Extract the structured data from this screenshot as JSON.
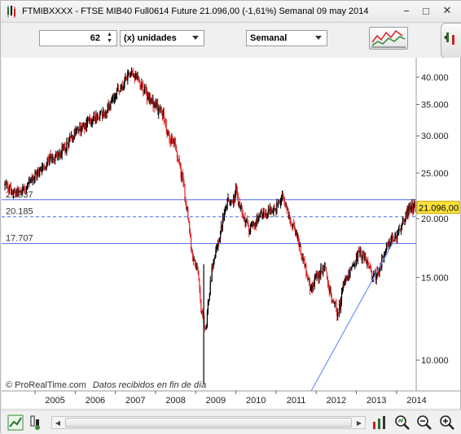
{
  "window": {
    "title": "FTMIBXXXX - FTSE MIB40 Full0614 Future    21.096,00 (-1,61%)    Semanal  09 may 2014",
    "minimize_label": "−",
    "maximize_label": "□",
    "close_label": "✕"
  },
  "controls": {
    "units_value": "62",
    "units_label": "(x) unidades",
    "timeframe_label": "Semanal"
  },
  "chart": {
    "watermark": "© ProRealTime.com",
    "watermark_note": "Datos recibidos en fin de día",
    "last_price_label": "21.096,00",
    "colors": {
      "up": "#000000",
      "down": "#dd2a2a",
      "hline": "#4a6cf0",
      "trend": "#6f8fff",
      "price_tag": "#ffe23a"
    }
  },
  "chart_data": {
    "type": "candlestick",
    "title": "FTMIBXXXX - FTSE MIB40 Full0614 Future",
    "y_scale": "log",
    "ylim": [
      8600,
      44000
    ],
    "y_ticks": [
      {
        "value": 40000,
        "label": "40.000"
      },
      {
        "value": 35000,
        "label": "35.000"
      },
      {
        "value": 30000,
        "label": "30.000"
      },
      {
        "value": 25000,
        "label": "25.000"
      },
      {
        "value": 20000,
        "label": "20.000"
      },
      {
        "value": 15000,
        "label": "15.000"
      },
      {
        "value": 10000,
        "label": "10.000"
      }
    ],
    "x_ticks": [
      "2005",
      "2006",
      "2007",
      "2008",
      "2009",
      "2010",
      "2011",
      "2012",
      "2013",
      "2014"
    ],
    "xlim": [
      2004.25,
      2014.47
    ],
    "horizontal_lines": [
      {
        "value": 21937,
        "label": "21.937",
        "style": "solid"
      },
      {
        "value": 20185,
        "label": "20.185",
        "style": "dashed"
      },
      {
        "value": 17707,
        "label": "17.707",
        "style": "solid"
      }
    ],
    "last_price": 21096,
    "trendline": [
      [
        2011.3,
        7000
      ],
      [
        2013.9,
        17700
      ]
    ],
    "price_path": [
      [
        2004.25,
        23500
      ],
      [
        2004.5,
        22800
      ],
      [
        2004.8,
        23400
      ],
      [
        2005.0,
        24500
      ],
      [
        2005.3,
        26500
      ],
      [
        2005.7,
        28000
      ],
      [
        2006.0,
        30500
      ],
      [
        2006.4,
        32500
      ],
      [
        2006.7,
        33500
      ],
      [
        2007.0,
        36500
      ],
      [
        2007.2,
        38500
      ],
      [
        2007.4,
        41500
      ],
      [
        2007.6,
        39000
      ],
      [
        2007.9,
        35500
      ],
      [
        2008.2,
        33000
      ],
      [
        2008.3,
        30500
      ],
      [
        2008.5,
        28500
      ],
      [
        2008.7,
        23500
      ],
      [
        2008.8,
        20500
      ],
      [
        2008.9,
        17000
      ],
      [
        2009.05,
        15500
      ],
      [
        2009.15,
        12500
      ],
      [
        2009.25,
        11800
      ],
      [
        2009.4,
        15500
      ],
      [
        2009.6,
        18500
      ],
      [
        2009.8,
        22000
      ],
      [
        2009.9,
        21500
      ],
      [
        2010.0,
        22800
      ],
      [
        2010.15,
        20500
      ],
      [
        2010.35,
        19000
      ],
      [
        2010.5,
        19800
      ],
      [
        2010.8,
        20800
      ],
      [
        2011.0,
        21000
      ],
      [
        2011.15,
        22300
      ],
      [
        2011.35,
        19800
      ],
      [
        2011.55,
        18000
      ],
      [
        2011.75,
        15500
      ],
      [
        2011.85,
        14300
      ],
      [
        2012.0,
        15000
      ],
      [
        2012.2,
        15800
      ],
      [
        2012.4,
        13500
      ],
      [
        2012.55,
        12500
      ],
      [
        2012.7,
        14800
      ],
      [
        2012.9,
        15500
      ],
      [
        2013.05,
        17000
      ],
      [
        2013.2,
        16500
      ],
      [
        2013.4,
        15000
      ],
      [
        2013.55,
        15200
      ],
      [
        2013.7,
        17000
      ],
      [
        2013.85,
        18000
      ],
      [
        2014.0,
        18500
      ],
      [
        2014.2,
        20000
      ],
      [
        2014.35,
        21500
      ],
      [
        2014.47,
        21096
      ]
    ]
  },
  "icons": {
    "app": "chart-app-icon",
    "tools": "indicators-icon",
    "side": "side-panel-icon",
    "bottom": [
      "chart-type-icon",
      "cursor-icon",
      "trade-icon",
      "zoom-auto-icon",
      "zoom-out-icon",
      "zoom-in-icon"
    ]
  }
}
